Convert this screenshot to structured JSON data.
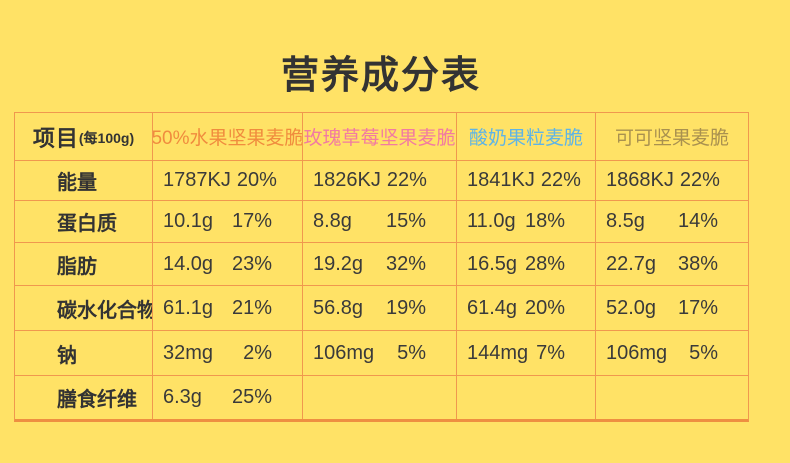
{
  "page": {
    "background_color": "#ffe266",
    "border_color": "#f0984e",
    "title": "营养成分表",
    "title_color": "#333333"
  },
  "table": {
    "header": {
      "item_label": "项目",
      "item_unit": "(每100g)",
      "products": [
        {
          "name": "50%水果坚果麦脆",
          "color": "#f08c3e"
        },
        {
          "name": "玫瑰草莓坚果麦脆",
          "color": "#f27ba1"
        },
        {
          "name": "酸奶果粒麦脆",
          "color": "#5eb4e6"
        },
        {
          "name": "可可坚果麦脆",
          "color": "#a9914f"
        }
      ]
    },
    "rows": [
      {
        "label": "能量",
        "cells": [
          {
            "value": "1787KJ",
            "pct": "20%"
          },
          {
            "value": "1826KJ",
            "pct": "22%"
          },
          {
            "value": "1841KJ",
            "pct": "22%"
          },
          {
            "value": "1868KJ",
            "pct": "22%"
          }
        ]
      },
      {
        "label": "蛋白质",
        "cells": [
          {
            "value": "10.1g",
            "pct": "17%"
          },
          {
            "value": "8.8g",
            "pct": "15%"
          },
          {
            "value": "11.0g",
            "pct": "18%"
          },
          {
            "value": "8.5g",
            "pct": "14%"
          }
        ]
      },
      {
        "label": "脂肪",
        "cells": [
          {
            "value": "14.0g",
            "pct": "23%"
          },
          {
            "value": "19.2g",
            "pct": "32%"
          },
          {
            "value": "16.5g",
            "pct": "28%"
          },
          {
            "value": "22.7g",
            "pct": "38%"
          }
        ]
      },
      {
        "label": "碳水化合物",
        "cells": [
          {
            "value": "61.1g",
            "pct": "21%"
          },
          {
            "value": "56.8g",
            "pct": "19%"
          },
          {
            "value": "61.4g",
            "pct": "20%"
          },
          {
            "value": "52.0g",
            "pct": "17%"
          }
        ]
      },
      {
        "label": "钠",
        "cells": [
          {
            "value": "32mg",
            "pct": "2%"
          },
          {
            "value": "106mg",
            "pct": "5%"
          },
          {
            "value": "144mg",
            "pct": "7%"
          },
          {
            "value": "106mg",
            "pct": "5%"
          }
        ]
      },
      {
        "label": "膳食纤维",
        "cells": [
          {
            "value": "6.3g",
            "pct": "25%"
          },
          {
            "value": "",
            "pct": ""
          },
          {
            "value": "",
            "pct": ""
          },
          {
            "value": "",
            "pct": ""
          }
        ]
      }
    ]
  }
}
